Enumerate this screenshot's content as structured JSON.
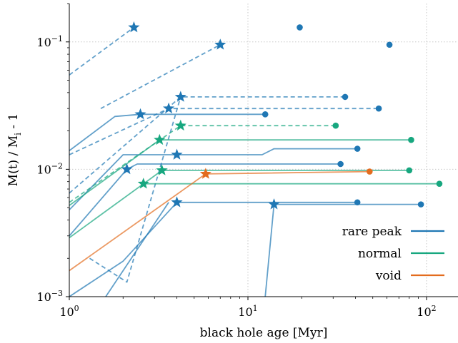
{
  "chart_data": {
    "type": "line",
    "xlabel": "black hole age [Myr]",
    "ylabel": "M(t) / M_i - 1",
    "xscale": "log",
    "yscale": "log",
    "xlim": [
      1,
      150
    ],
    "ylim": [
      0.001,
      0.2
    ],
    "x_ticks": [
      {
        "value": 1,
        "base": "10",
        "exp": "0"
      },
      {
        "value": 10,
        "base": "10",
        "exp": "1"
      },
      {
        "value": 100,
        "base": "10",
        "exp": "2"
      }
    ],
    "y_ticks": [
      {
        "value": 0.001,
        "base": "10",
        "exp": "−3"
      },
      {
        "value": 0.01,
        "base": "10",
        "exp": "−2"
      },
      {
        "value": 0.1,
        "base": "10",
        "exp": "−1"
      }
    ],
    "grid": "dotted at major ticks",
    "legend": {
      "position": "bottom-right",
      "entries": [
        {
          "label": "rare peak",
          "color": "#1f77b4"
        },
        {
          "label": "normal",
          "color": "#17a77f"
        },
        {
          "label": "void",
          "color": "#e36c1e"
        }
      ]
    },
    "marker_note": "star = transition point, circle = end point",
    "series": [
      {
        "group": "rare peak",
        "points": [
          [
            1,
            0.055
          ],
          [
            2.3,
            0.13
          ]
        ],
        "style": "dashed",
        "star": [
          2.3,
          0.13
        ],
        "end": [
          19.5,
          0.13
        ]
      },
      {
        "group": "rare peak",
        "points": [
          [
            1.5,
            0.03
          ],
          [
            7,
            0.095
          ]
        ],
        "style": "dashed",
        "star": [
          7,
          0.095
        ],
        "end": [
          62,
          0.095
        ]
      },
      {
        "group": "rare peak",
        "points": [
          [
            1,
            0.014
          ],
          [
            1.8,
            0.026
          ],
          [
            2.5,
            0.027
          ],
          [
            12.5,
            0.027
          ]
        ],
        "style": "solid",
        "star": [
          2.5,
          0.027
        ],
        "end": [
          12.5,
          0.027
        ]
      },
      {
        "group": "rare peak",
        "points": [
          [
            1,
            0.013
          ],
          [
            3.6,
            0.03
          ],
          [
            54,
            0.03
          ]
        ],
        "style": "dashed",
        "star": [
          3.6,
          0.03
        ],
        "end": [
          54,
          0.03
        ]
      },
      {
        "group": "rare peak",
        "points": [
          [
            1,
            0.0065
          ],
          [
            4.2,
            0.037
          ],
          [
            35,
            0.037
          ]
        ],
        "style": "dashed",
        "star": [
          4.2,
          0.037
        ],
        "end": [
          35,
          0.037
        ]
      },
      {
        "group": "rare peak",
        "points": [
          [
            1.3,
            0.002
          ],
          [
            2.1,
            0.0013
          ],
          [
            4.2,
            0.037
          ]
        ],
        "style": "dashed",
        "star": null,
        "end": null
      },
      {
        "group": "rare peak",
        "points": [
          [
            1,
            0.0048
          ],
          [
            2,
            0.013
          ],
          [
            4.0,
            0.013
          ],
          [
            12,
            0.013
          ],
          [
            14,
            0.0145
          ],
          [
            41,
            0.0145
          ]
        ],
        "style": "solid",
        "star": [
          4.0,
          0.013
        ],
        "end": [
          41,
          0.0145
        ]
      },
      {
        "group": "rare peak",
        "points": [
          [
            1,
            0.003
          ],
          [
            2.1,
            0.01
          ],
          [
            2.4,
            0.011
          ],
          [
            33,
            0.011
          ]
        ],
        "style": "solid",
        "star": [
          2.1,
          0.01
        ],
        "end": [
          33,
          0.011
        ]
      },
      {
        "group": "rare peak",
        "points": [
          [
            1,
            0.001
          ],
          [
            2,
            0.0019
          ],
          [
            4.0,
            0.0055
          ],
          [
            41,
            0.0055
          ]
        ],
        "style": "solid",
        "star": [
          4.0,
          0.0055
        ],
        "end": [
          41,
          0.0055
        ]
      },
      {
        "group": "rare peak",
        "points": [
          [
            12.5,
            0.001
          ],
          [
            14,
            0.0053
          ],
          [
            93,
            0.0053
          ]
        ],
        "style": "solid",
        "star": [
          14,
          0.0053
        ],
        "end": [
          93,
          0.0053
        ]
      },
      {
        "group": "rare peak",
        "points": [
          [
            1.6,
            0.001
          ],
          [
            3.6,
            0.0055
          ]
        ],
        "style": "solid",
        "star": null,
        "end": null
      },
      {
        "group": "normal",
        "points": [
          [
            1,
            0.0052
          ],
          [
            3.2,
            0.017
          ],
          [
            82,
            0.017
          ]
        ],
        "style": "solid",
        "star": [
          3.2,
          0.017
        ],
        "end": [
          82,
          0.017
        ]
      },
      {
        "group": "normal",
        "points": [
          [
            1,
            0.0055
          ],
          [
            4.2,
            0.022
          ],
          [
            31,
            0.022
          ]
        ],
        "style": "dashed",
        "star": [
          4.2,
          0.022
        ],
        "end": [
          31,
          0.022
        ]
      },
      {
        "group": "normal",
        "points": [
          [
            1,
            0.0029
          ],
          [
            3.3,
            0.0098
          ],
          [
            80,
            0.0098
          ]
        ],
        "style": "solid",
        "star": [
          3.3,
          0.0098
        ],
        "end": [
          80,
          0.0098
        ]
      },
      {
        "group": "normal",
        "points": [
          [
            2.6,
            0.0077
          ],
          [
            118,
            0.0077
          ]
        ],
        "style": "solid",
        "star": [
          2.6,
          0.0077
        ],
        "end": [
          118,
          0.0077
        ]
      },
      {
        "group": "void",
        "points": [
          [
            1,
            0.0016
          ],
          [
            5.8,
            0.0092
          ],
          [
            48,
            0.0096
          ]
        ],
        "style": "solid",
        "star": [
          5.8,
          0.0092
        ],
        "end": [
          48,
          0.0096
        ]
      }
    ]
  }
}
